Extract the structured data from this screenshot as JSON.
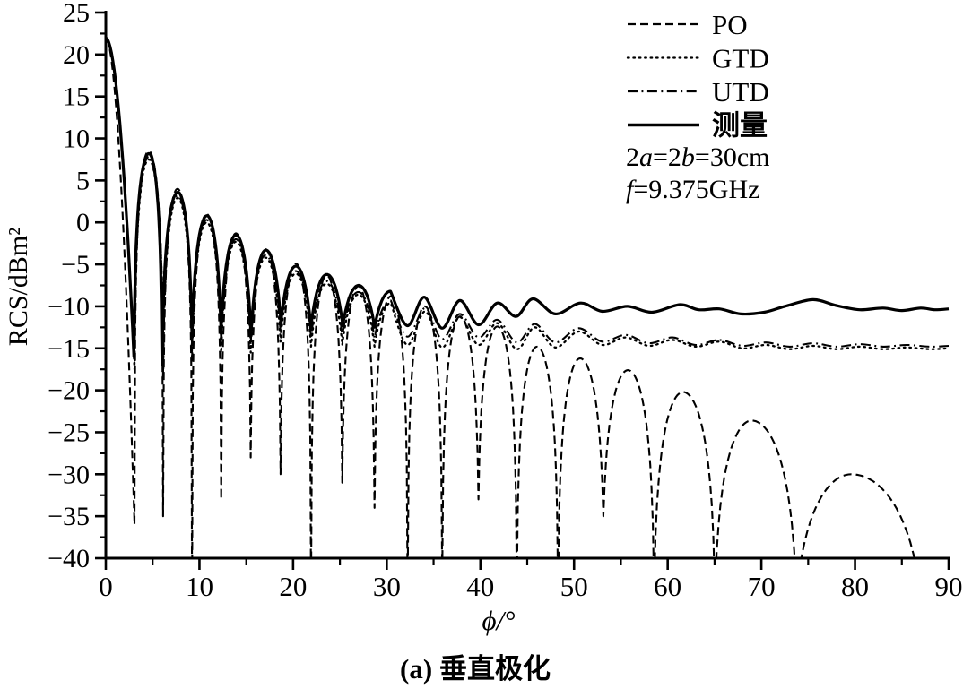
{
  "chart_data": {
    "type": "line",
    "title": "",
    "xlabel": "ϕ/°",
    "ylabel": "RCS/dBm²",
    "caption": "(a) 垂直极化",
    "xlim": [
      0,
      90
    ],
    "ylim": [
      -40,
      25
    ],
    "x_ticks": [
      0,
      10,
      20,
      30,
      40,
      50,
      60,
      70,
      80,
      90
    ],
    "y_ticks": [
      25,
      20,
      15,
      10,
      5,
      0,
      -5,
      -10,
      -15,
      -20,
      -25,
      -30,
      -35,
      -40
    ],
    "x_minor_step": 5,
    "y_minor_step": 2.5,
    "grid": false,
    "legend_position": "top-right-inside",
    "annotations": [
      "2a=2b=30cm",
      "f=9.375GHz"
    ],
    "axis_color": "#000000",
    "line_color": "#000000",
    "series": [
      {
        "name": "PO",
        "style": "dashed",
        "lobes": [
          [
            0,
            22
          ],
          [
            3.06,
            -36
          ],
          [
            4.59,
            8.5
          ],
          [
            6.12,
            -35
          ],
          [
            7.66,
            4.0
          ],
          [
            9.21,
            -44
          ],
          [
            10.76,
            1.0
          ],
          [
            12.32,
            -33
          ],
          [
            13.89,
            -1.3
          ],
          [
            15.47,
            -28
          ],
          [
            17.06,
            -3.2
          ],
          [
            18.66,
            -30
          ],
          [
            20.29,
            -4.9
          ],
          [
            21.92,
            -44
          ],
          [
            23.58,
            -6.3
          ],
          [
            25.25,
            -31
          ],
          [
            26.96,
            -7.6
          ],
          [
            28.69,
            -34
          ],
          [
            30.44,
            -8.8
          ],
          [
            32.23,
            -44
          ],
          [
            34.06,
            -10.0
          ],
          [
            35.92,
            -42
          ],
          [
            37.84,
            -11.2
          ],
          [
            39.79,
            -33
          ],
          [
            41.81,
            -12.4
          ],
          [
            43.89,
            -44
          ],
          [
            46.05,
            -14.8
          ],
          [
            48.29,
            -44
          ],
          [
            50.65,
            -16.2
          ],
          [
            53.13,
            -35
          ],
          [
            55.76,
            -17.6
          ],
          [
            58.55,
            -44
          ],
          [
            61.64,
            -20.2
          ],
          [
            65.04,
            -44
          ],
          [
            68.96,
            -23.6
          ],
          [
            73.74,
            -44
          ],
          [
            79.6,
            -30.0
          ],
          [
            87.0,
            -44
          ]
        ],
        "tail": []
      },
      {
        "name": "GTD",
        "style": "dotted",
        "lobes": [
          [
            0,
            21.9
          ],
          [
            3.06,
            -17.5
          ],
          [
            4.59,
            7.5
          ],
          [
            6.12,
            -18.5
          ],
          [
            7.66,
            2.9
          ],
          [
            9.21,
            -16.5
          ],
          [
            10.76,
            0.0
          ],
          [
            12.32,
            -15.5
          ],
          [
            13.89,
            -2.3
          ],
          [
            15.47,
            -15.5
          ],
          [
            17.06,
            -4.2
          ],
          [
            18.66,
            -14.2
          ],
          [
            20.29,
            -6.1
          ],
          [
            21.92,
            -14.8
          ],
          [
            23.58,
            -7.3
          ],
          [
            25.25,
            -14.6
          ],
          [
            26.96,
            -8.6
          ],
          [
            28.69,
            -14.8
          ],
          [
            30.44,
            -9.6
          ]
        ],
        "tail": [
          [
            32.2,
            -14.6
          ],
          [
            34.1,
            -10.6
          ],
          [
            35.9,
            -14.9
          ],
          [
            37.8,
            -11.3
          ],
          [
            39.8,
            -14.6
          ],
          [
            41.8,
            -12.0
          ],
          [
            43.9,
            -15.1
          ],
          [
            45.8,
            -12.5
          ],
          [
            48.0,
            -14.9
          ],
          [
            50.5,
            -13.0
          ],
          [
            53.0,
            -14.6
          ],
          [
            55.5,
            -13.7
          ],
          [
            58.0,
            -14.7
          ],
          [
            60.5,
            -14.0
          ],
          [
            63.0,
            -14.8
          ],
          [
            65.5,
            -14.2
          ],
          [
            68.0,
            -15.0
          ],
          [
            70.5,
            -14.6
          ],
          [
            73.0,
            -15.1
          ],
          [
            75.5,
            -14.7
          ],
          [
            78.0,
            -15.1
          ],
          [
            80.5,
            -14.8
          ],
          [
            83.0,
            -15.1
          ],
          [
            85.5,
            -14.9
          ],
          [
            88.0,
            -15.1
          ],
          [
            90.0,
            -15.0
          ]
        ]
      },
      {
        "name": "UTD",
        "style": "dashdot",
        "lobes": [
          [
            0,
            22
          ],
          [
            3.06,
            -17.0
          ],
          [
            4.59,
            7.8
          ],
          [
            6.12,
            -18.0
          ],
          [
            7.66,
            3.2
          ],
          [
            9.21,
            -15.0
          ],
          [
            10.76,
            0.3
          ],
          [
            12.32,
            -14.5
          ],
          [
            13.89,
            -2.0
          ],
          [
            15.47,
            -14.5
          ],
          [
            17.06,
            -3.9
          ],
          [
            18.66,
            -13.3
          ],
          [
            20.29,
            -5.8
          ],
          [
            21.92,
            -13.8
          ],
          [
            23.58,
            -7.0
          ],
          [
            25.25,
            -13.6
          ],
          [
            26.96,
            -8.3
          ],
          [
            28.69,
            -13.8
          ],
          [
            30.44,
            -9.3
          ]
        ],
        "tail": [
          [
            32.2,
            -13.6
          ],
          [
            34.1,
            -10.2
          ],
          [
            35.9,
            -13.9
          ],
          [
            37.8,
            -10.9
          ],
          [
            39.8,
            -13.7
          ],
          [
            41.8,
            -11.6
          ],
          [
            43.9,
            -14.3
          ],
          [
            45.8,
            -12.1
          ],
          [
            48.0,
            -14.3
          ],
          [
            50.5,
            -12.6
          ],
          [
            53.0,
            -14.2
          ],
          [
            55.5,
            -13.4
          ],
          [
            58.0,
            -14.4
          ],
          [
            60.5,
            -13.7
          ],
          [
            63.0,
            -14.6
          ],
          [
            65.5,
            -14.0
          ],
          [
            68.0,
            -14.7
          ],
          [
            70.5,
            -14.3
          ],
          [
            73.0,
            -14.8
          ],
          [
            75.5,
            -14.4
          ],
          [
            78.0,
            -14.8
          ],
          [
            80.5,
            -14.5
          ],
          [
            83.0,
            -14.8
          ],
          [
            85.5,
            -14.6
          ],
          [
            88.0,
            -14.8
          ],
          [
            90.0,
            -14.7
          ]
        ]
      },
      {
        "name": "测量",
        "style": "solid",
        "lobes": [
          [
            0,
            22
          ],
          [
            3.0,
            -16.0
          ],
          [
            4.6,
            8.2
          ],
          [
            6.0,
            -17.0
          ],
          [
            7.7,
            3.6
          ],
          [
            9.2,
            -13.5
          ],
          [
            10.8,
            0.8
          ],
          [
            12.3,
            -13.0
          ],
          [
            13.9,
            -1.5
          ],
          [
            15.5,
            -13.5
          ],
          [
            17.1,
            -3.3
          ],
          [
            18.7,
            -12.0
          ],
          [
            20.3,
            -5.2
          ],
          [
            21.9,
            -12.5
          ],
          [
            23.6,
            -6.2
          ],
          [
            25.3,
            -12.3
          ],
          [
            27.0,
            -7.5
          ],
          [
            28.7,
            -12.5
          ],
          [
            30.4,
            -8.2
          ]
        ],
        "tail": [
          [
            32.2,
            -12.3
          ],
          [
            34.0,
            -8.9
          ],
          [
            35.9,
            -12.6
          ],
          [
            37.8,
            -9.3
          ],
          [
            39.8,
            -12.2
          ],
          [
            41.8,
            -9.6
          ],
          [
            43.8,
            -11.2
          ],
          [
            45.6,
            -9.1
          ],
          [
            48.0,
            -10.9
          ],
          [
            50.7,
            -9.6
          ],
          [
            53.0,
            -10.6
          ],
          [
            55.7,
            -10.0
          ],
          [
            58.3,
            -10.7
          ],
          [
            61.3,
            -9.8
          ],
          [
            63.3,
            -10.4
          ],
          [
            65.5,
            -10.3
          ],
          [
            67.8,
            -10.9
          ],
          [
            70.3,
            -10.7
          ],
          [
            72.5,
            -10.0
          ],
          [
            75.5,
            -9.2
          ],
          [
            78.0,
            -9.9
          ],
          [
            80.5,
            -10.4
          ],
          [
            83.0,
            -10.2
          ],
          [
            85.0,
            -10.5
          ],
          [
            87.0,
            -10.2
          ],
          [
            88.5,
            -10.4
          ],
          [
            90.0,
            -10.3
          ]
        ]
      }
    ]
  }
}
